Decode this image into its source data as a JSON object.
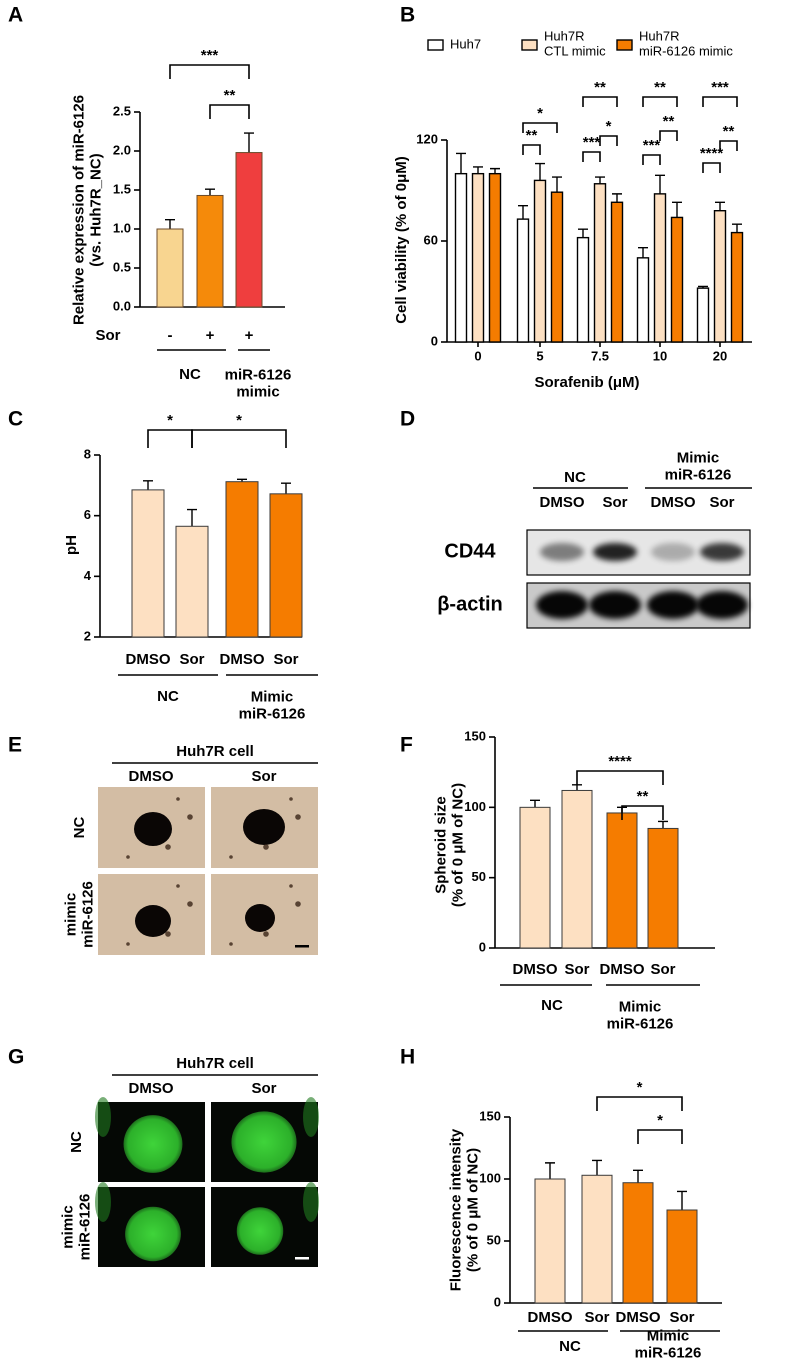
{
  "chart_data": [
    {
      "panel": "A",
      "type": "bar",
      "y_label": "Relative expression of miR-6126\n(vs. Huh7R_NC)",
      "category_label": "Sor",
      "categories": [
        "-",
        "+",
        "+"
      ],
      "groups": [
        "NC",
        "miR-6126\nmimic"
      ],
      "values": [
        1.0,
        1.43,
        1.98
      ],
      "errors": [
        0.12,
        0.08,
        0.25
      ],
      "colors": [
        "#f8d590",
        "#f58a0a",
        "#ef3e3e"
      ],
      "edgecolor": "#6b4a2a",
      "ylim": [
        0,
        2.5
      ],
      "yticks": [
        {
          "value": 0,
          "label": "0.0"
        },
        0.5,
        {
          "value": 1,
          "label": "1.0"
        },
        1.5,
        {
          "value": 2,
          "label": "2.0"
        },
        2.5
      ],
      "annotations": [
        "***",
        "**"
      ]
    },
    {
      "panel": "B",
      "type": "grouped-bar",
      "x_label": "Sorafenib (μM)",
      "y_label": "Cell viability (% of 0μM)",
      "categories": [
        "0",
        "5",
        "7.5",
        "10",
        "20"
      ],
      "edgecolor": "#000000",
      "series": [
        {
          "name": "Huh7",
          "color": "#ffffff",
          "values": [
            100,
            73,
            62,
            50,
            32
          ],
          "errors": [
            12,
            8,
            5,
            6,
            1
          ]
        },
        {
          "name": "Huh7R\nCTL mimic",
          "color": "#fde0c2",
          "values": [
            100,
            96,
            94,
            88,
            78
          ],
          "errors": [
            4,
            10,
            4,
            11,
            5
          ]
        },
        {
          "name": "Huh7R\nmiR-6126 mimic",
          "color": "#f57c00",
          "values": [
            100,
            89,
            83,
            74,
            65
          ],
          "errors": [
            3,
            9,
            5,
            9,
            5
          ]
        }
      ],
      "ylim": [
        0,
        120
      ],
      "yticks": [
        0,
        60,
        120
      ],
      "annotations": [
        [],
        [
          "**",
          "*"
        ],
        [
          "***",
          "*",
          "**"
        ],
        [
          "***",
          "**",
          "**"
        ],
        [
          "****",
          "**",
          "***"
        ]
      ]
    },
    {
      "panel": "C",
      "type": "bar",
      "y_label": "pH",
      "categories": [
        "DMSO",
        "Sor",
        "DMSO",
        "Sor"
      ],
      "groups": [
        "NC",
        "Mimic\nmiR-6126"
      ],
      "values": [
        6.85,
        5.65,
        7.12,
        6.72
      ],
      "errors": [
        0.3,
        0.55,
        0.08,
        0.35
      ],
      "colors": [
        "#fde0c2",
        "#fde0c2",
        "#f57c00",
        "#f57c00"
      ],
      "edgecolor": "#3a3a3a",
      "ylim": [
        2,
        8
      ],
      "yticks": [
        2,
        4,
        6,
        8
      ],
      "annotations": [
        "*",
        "*"
      ]
    },
    {
      "panel": "F",
      "type": "bar",
      "y_label": "Spheroid size\n(% of 0 μM of NC)",
      "categories": [
        "DMSO",
        "Sor",
        "DMSO",
        "Sor"
      ],
      "groups": [
        "NC",
        "Mimic\nmiR-6126"
      ],
      "values": [
        100,
        112,
        96,
        85
      ],
      "errors": [
        5,
        4,
        4,
        5
      ],
      "colors": [
        "#fde0c2",
        "#fde0c2",
        "#f57c00",
        "#f57c00"
      ],
      "edgecolor": "#3a3a3a",
      "ylim": [
        0,
        150
      ],
      "yticks": [
        0,
        50,
        100,
        150
      ],
      "annotations": [
        "****",
        "**"
      ]
    },
    {
      "panel": "H",
      "type": "bar",
      "y_label": "Fluorescence intensity\n(% of 0 μM of NC)",
      "categories": [
        "DMSO",
        "Sor",
        "DMSO",
        "Sor"
      ],
      "groups": [
        "NC",
        "Mimic\nmiR-6126"
      ],
      "values": [
        100,
        103,
        97,
        75
      ],
      "errors": [
        13,
        12,
        10,
        15
      ],
      "colors": [
        "#fde0c2",
        "#fde0c2",
        "#f57c00",
        "#f57c00"
      ],
      "edgecolor": "#3a3a3a",
      "ylim": [
        0,
        150
      ],
      "yticks": [
        0,
        50,
        100,
        150
      ],
      "annotations": [
        "*",
        "*"
      ]
    }
  ],
  "blot": {
    "panel": "D",
    "groups": [
      "NC",
      "Mimic\nmiR-6126"
    ],
    "lanes": [
      "DMSO",
      "Sor",
      "DMSO",
      "Sor"
    ],
    "rows": [
      "CD44",
      "β-actin"
    ]
  },
  "images": [
    {
      "panel": "E",
      "title": "Huh7R cell",
      "columns": [
        "DMSO",
        "Sor"
      ],
      "rows": [
        "NC",
        "mimic\nmiR-6126"
      ]
    },
    {
      "panel": "G",
      "title": "Huh7R cell",
      "columns": [
        "DMSO",
        "Sor"
      ],
      "rows": [
        "NC",
        "mimic\nmiR-6126"
      ]
    }
  ]
}
